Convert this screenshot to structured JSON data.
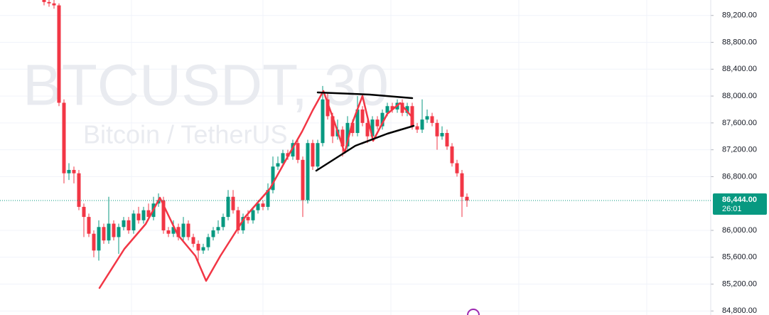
{
  "chart_data": {
    "type": "candlestick",
    "watermark_symbol": "BTCUSDT, 30",
    "watermark_name": "Bitcoin / TetherUS",
    "up_color": "#089981",
    "down_color": "#f23645",
    "ylim": [
      84740,
      89430
    ],
    "yticks": [
      {
        "value": 89200,
        "label": "89,200.00"
      },
      {
        "value": 88800,
        "label": "88,800.00"
      },
      {
        "value": 88400,
        "label": "88,400.00"
      },
      {
        "value": 88000,
        "label": "88,000.00"
      },
      {
        "value": 87600,
        "label": "87,600.00"
      },
      {
        "value": 87200,
        "label": "87,200.00"
      },
      {
        "value": 86800,
        "label": "86,800.00"
      },
      {
        "value": 86000,
        "label": "86,000.00"
      },
      {
        "value": 85600,
        "label": "85,600.00"
      },
      {
        "value": 85200,
        "label": "85,200.00"
      },
      {
        "value": 84800,
        "label": "84,800.00"
      }
    ],
    "last_price": {
      "value": 86444,
      "label": "86,444.00"
    },
    "countdown": "26:01",
    "open": [
      89450,
      89400,
      89380,
      89350,
      87900,
      86850,
      86900,
      86850,
      86350,
      86200,
      85950,
      85700,
      86050,
      85850,
      86100,
      85900,
      86050,
      86150,
      86000,
      86250,
      86150,
      86300,
      86200,
      86400,
      86450,
      86000,
      85950,
      86050,
      85900,
      86100,
      85900,
      85800,
      85700,
      85750,
      85900,
      86000,
      86050,
      86200,
      86500,
      86300,
      86000,
      86200,
      86150,
      86300,
      86400,
      86350,
      86600,
      86950,
      87000,
      87150,
      87100,
      87300,
      87050,
      86450,
      87300,
      86950,
      87300,
      87950,
      87700,
      87400,
      87500,
      87250,
      87600,
      87450,
      87800,
      87600,
      87400,
      87650,
      87550,
      87750,
      87850,
      87800,
      87900,
      87750,
      87850,
      87550,
      87500,
      87650,
      87700,
      87600,
      87400,
      87450,
      87250,
      87000,
      86850,
      86500
    ],
    "high": [
      89500,
      89450,
      89430,
      89380,
      87950,
      87000,
      86950,
      86900,
      86400,
      86250,
      86000,
      86150,
      86100,
      86500,
      86150,
      86100,
      86200,
      86200,
      86300,
      86350,
      86350,
      86400,
      86500,
      86550,
      86500,
      86050,
      86150,
      86100,
      86200,
      86150,
      85950,
      85850,
      85800,
      85950,
      86050,
      86150,
      86250,
      86600,
      86600,
      86350,
      86250,
      86300,
      86350,
      86450,
      86450,
      86700,
      87100,
      87100,
      87200,
      87200,
      87350,
      87350,
      87100,
      87350,
      87350,
      87350,
      88150,
      88050,
      87750,
      87650,
      87550,
      87700,
      87650,
      88000,
      87850,
      87650,
      87700,
      87700,
      87800,
      87900,
      87900,
      87950,
      87950,
      87900,
      87900,
      87600,
      87950,
      87800,
      87750,
      87650,
      87550,
      87500,
      87300,
      87050,
      86900,
      86550
    ],
    "low": [
      89350,
      89330,
      89300,
      87850,
      86700,
      86750,
      86700,
      86300,
      85900,
      85900,
      85600,
      85550,
      85800,
      85800,
      85850,
      85650,
      86000,
      85950,
      85950,
      86100,
      86100,
      86150,
      86150,
      86350,
      85950,
      85900,
      85900,
      85850,
      85850,
      85850,
      85750,
      85550,
      85650,
      85700,
      85850,
      85950,
      86000,
      86150,
      86250,
      85950,
      85950,
      86100,
      86100,
      86250,
      86300,
      86300,
      86550,
      86900,
      86950,
      87050,
      87050,
      87000,
      86200,
      86400,
      86900,
      86900,
      87250,
      87650,
      87300,
      87350,
      87100,
      87200,
      87400,
      87400,
      87550,
      87300,
      87350,
      87500,
      87500,
      87700,
      87750,
      87750,
      87700,
      87700,
      87500,
      87450,
      87450,
      87600,
      87550,
      87200,
      87350,
      87200,
      86950,
      86800,
      86200,
      86350
    ],
    "close": [
      89400,
      89380,
      89350,
      87900,
      86850,
      86900,
      86850,
      86350,
      86200,
      85950,
      85700,
      86050,
      85850,
      86100,
      85900,
      86050,
      86150,
      86000,
      86250,
      86150,
      86300,
      86200,
      86400,
      86450,
      86000,
      85950,
      86050,
      85900,
      86100,
      85900,
      85800,
      85700,
      85750,
      85900,
      86000,
      86050,
      86200,
      86500,
      86300,
      86000,
      86200,
      86150,
      86300,
      86400,
      86350,
      86600,
      86950,
      87000,
      87150,
      87100,
      87300,
      87050,
      86450,
      87300,
      86950,
      87300,
      87950,
      87700,
      87400,
      87500,
      87250,
      87600,
      87450,
      87800,
      87600,
      87400,
      87650,
      87550,
      87750,
      87850,
      87800,
      87900,
      87750,
      87850,
      87550,
      87500,
      87650,
      87700,
      87600,
      87400,
      87450,
      87250,
      87000,
      86850,
      86500,
      86444
    ]
  }
}
